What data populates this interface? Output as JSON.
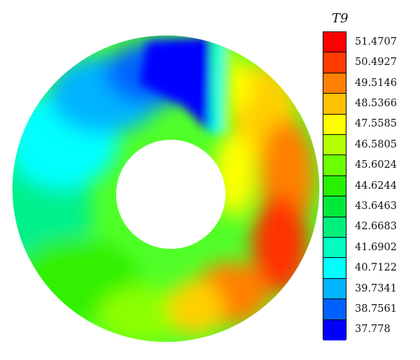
{
  "legend": {
    "title": "T9",
    "levels": [
      {
        "label": "51.4707",
        "color": "#ff0000"
      },
      {
        "label": "50.4927",
        "color": "#ff3c00"
      },
      {
        "label": "49.5146",
        "color": "#ff8000"
      },
      {
        "label": "48.5366",
        "color": "#ffc000"
      },
      {
        "label": "47.5585",
        "color": "#ffff00"
      },
      {
        "label": "46.5805",
        "color": "#b4ff00"
      },
      {
        "label": "45.6024",
        "color": "#6cff00"
      },
      {
        "label": "44.6244",
        "color": "#28f000"
      },
      {
        "label": "43.6463",
        "color": "#00e83c"
      },
      {
        "label": "42.6683",
        "color": "#00f080"
      },
      {
        "label": "41.6902",
        "color": "#00ffc0"
      },
      {
        "label": "40.7122",
        "color": "#00ffff"
      },
      {
        "label": "39.7341",
        "color": "#00b4ff"
      },
      {
        "label": "38.7561",
        "color": "#0060ff"
      },
      {
        "label": "37.778",
        "color": "#0000ff"
      }
    ]
  },
  "colors": {
    "ring_base": "#3cff3c",
    "background": "#ffffff"
  }
}
